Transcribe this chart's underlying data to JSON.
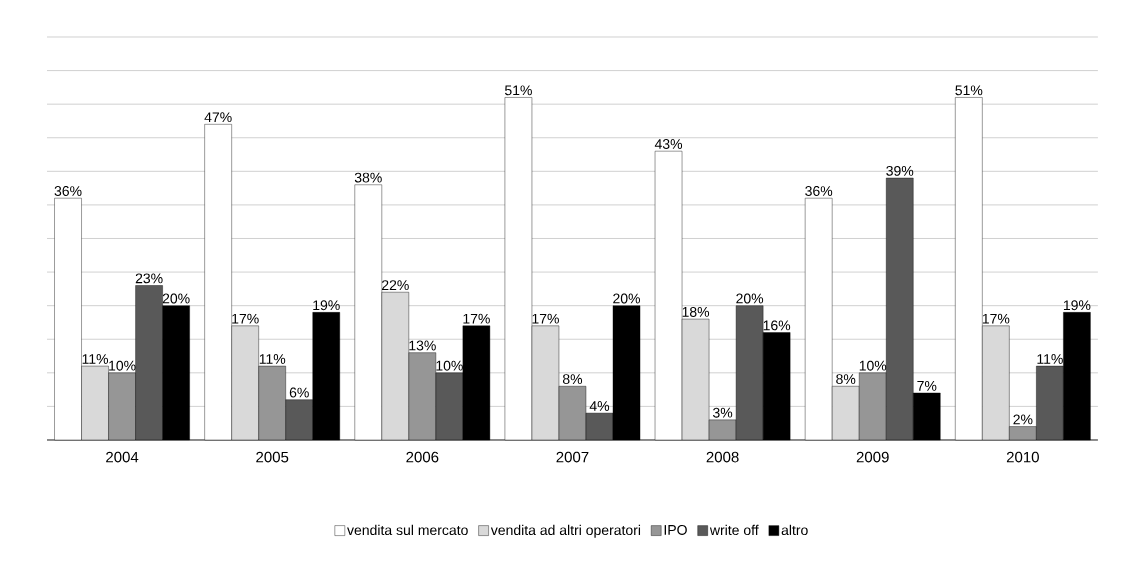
{
  "chart_data": {
    "type": "bar",
    "categories": [
      "2004",
      "2005",
      "2006",
      "2007",
      "2008",
      "2009",
      "2010"
    ],
    "series": [
      {
        "name": "vendita sul mercato",
        "color": "#ffffff",
        "values": [
          36,
          47,
          38,
          51,
          43,
          36,
          51
        ],
        "value_labels": [
          "36%",
          "47%",
          "38%",
          "51%",
          "43%",
          "36%",
          "51%"
        ]
      },
      {
        "name": "vendita ad altri operatori",
        "color": "#d9d9d9",
        "values": [
          11,
          17,
          22,
          17,
          18,
          8,
          17
        ],
        "value_labels": [
          "11%",
          "17%",
          "22%",
          "17%",
          "18%",
          "8%",
          "17%"
        ]
      },
      {
        "name": "IPO",
        "color": "#969696",
        "values": [
          10,
          11,
          13,
          8,
          3,
          10,
          2
        ],
        "value_labels": [
          "10%",
          "11%",
          "13%",
          "8%",
          "3%",
          "10%",
          "2%"
        ]
      },
      {
        "name": "write off",
        "color": "#595959",
        "values": [
          23,
          6,
          10,
          4,
          20,
          39,
          11
        ],
        "value_labels": [
          "23%",
          "6%",
          "10%",
          "4%",
          "20%",
          "39%",
          "11%"
        ]
      },
      {
        "name": "altro",
        "color": "#000000",
        "values": [
          20,
          19,
          17,
          20,
          16,
          7,
          19
        ],
        "value_labels": [
          "20%",
          "19%",
          "17%",
          "20%",
          "16%",
          "7%",
          "19%"
        ]
      }
    ],
    "ylim": [
      0,
      60
    ],
    "grid": "y",
    "tick_labels": "x",
    "legend": "bottom"
  }
}
